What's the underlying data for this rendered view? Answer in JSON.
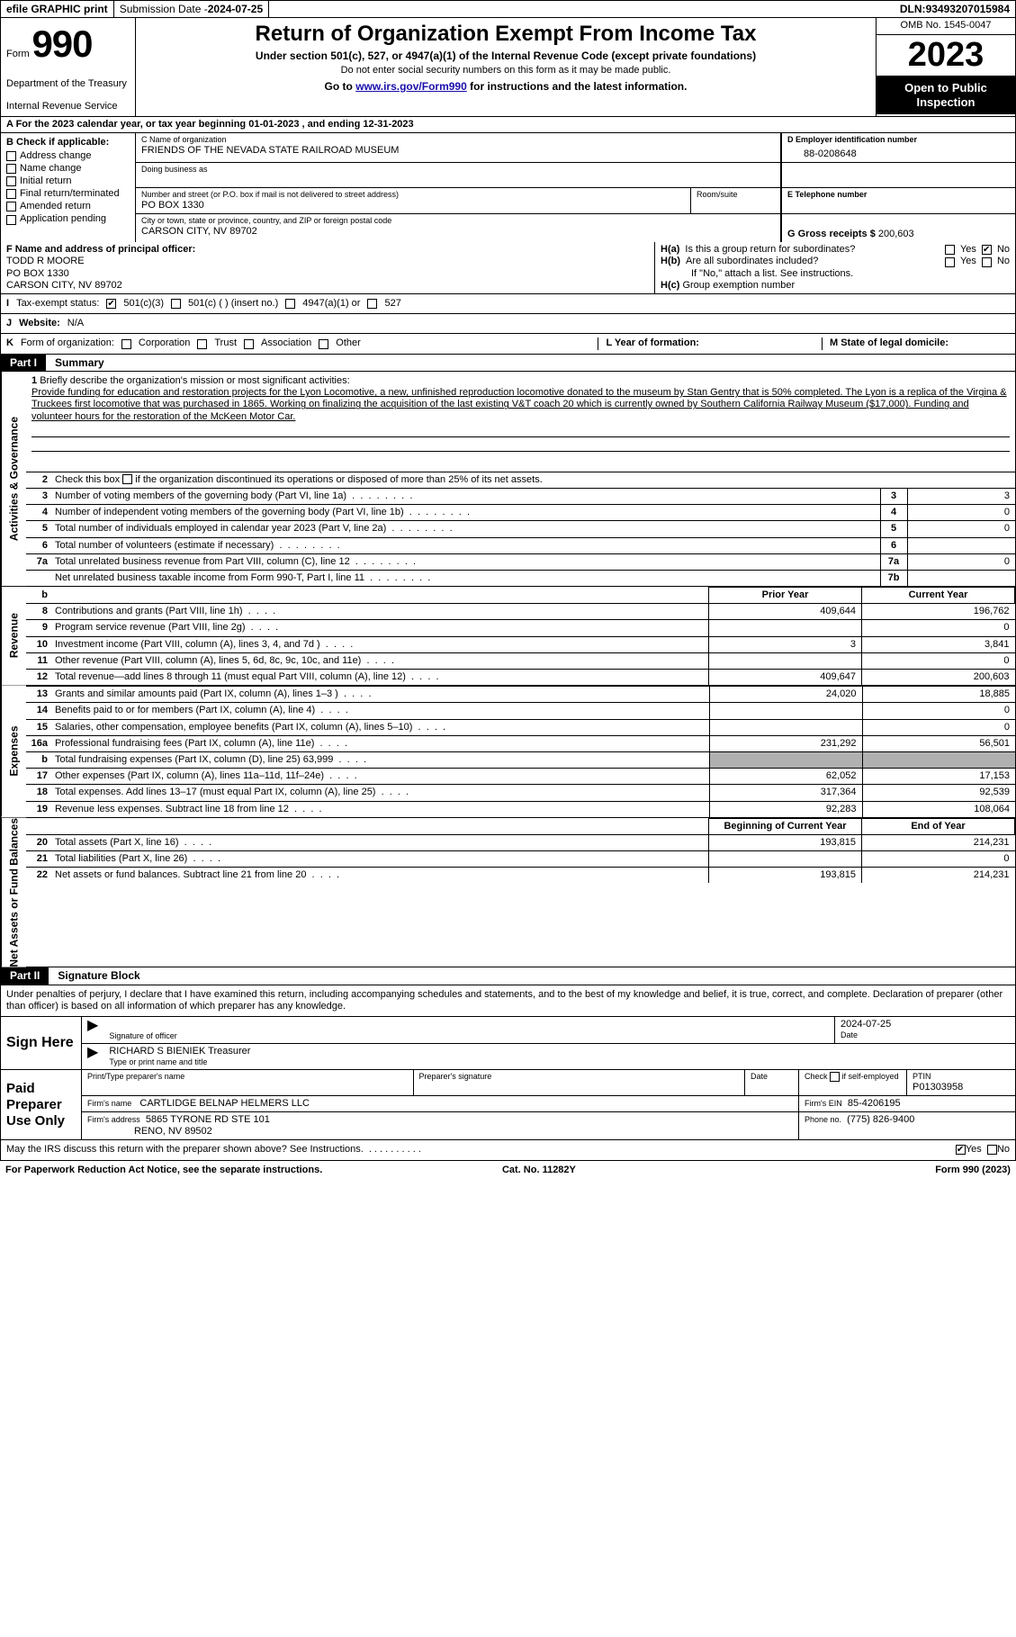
{
  "colors": {
    "black": "#000000",
    "white": "#ffffff",
    "shade_light": "#d9d9d9",
    "shade_dark": "#b0b0b0",
    "link": "#1a0dab"
  },
  "topbar": {
    "efile": "efile GRAPHIC print",
    "sub_date_label": "Submission Date - ",
    "sub_date": "2024-07-25",
    "dln_label": "DLN: ",
    "dln": "93493207015984"
  },
  "header": {
    "form_word": "Form",
    "form_num": "990",
    "dept1": "Department of the Treasury",
    "dept2": "Internal Revenue Service",
    "title": "Return of Organization Exempt From Income Tax",
    "sub": "Under section 501(c), 527, or 4947(a)(1) of the Internal Revenue Code (except private foundations)",
    "note": "Do not enter social security numbers on this form as it may be made public.",
    "goto_pre": "Go to ",
    "goto_link": "www.irs.gov/Form990",
    "goto_post": " for instructions and the latest information.",
    "omb": "OMB No. 1545-0047",
    "year": "2023",
    "inspect1": "Open to Public",
    "inspect2": "Inspection"
  },
  "rowA": {
    "text_pre": "A For the 2023 calendar year, or tax year beginning ",
    "begin": "01-01-2023",
    "mid": " , and ending ",
    "end": "12-31-2023"
  },
  "sectionB": {
    "header": "B Check if applicable:",
    "items": [
      "Address change",
      "Name change",
      "Initial return",
      "Final return/terminated",
      "Amended return",
      "Application pending"
    ]
  },
  "sectionC": {
    "name_lbl": "C Name of organization",
    "name": "FRIENDS OF THE NEVADA STATE RAILROAD MUSEUM",
    "dba_lbl": "Doing business as",
    "addr_lbl": "Number and street (or P.O. box if mail is not delivered to street address)",
    "addr": "PO BOX 1330",
    "room_lbl": "Room/suite",
    "city_lbl": "City or town, state or province, country, and ZIP or foreign postal code",
    "city": "CARSON CITY, NV  89702"
  },
  "sectionD": {
    "ein_lbl": "D Employer identification number",
    "ein": "88-0208648",
    "tel_lbl": "E Telephone number",
    "gross_lbl": "G Gross receipts $ ",
    "gross": "200,603"
  },
  "sectionF": {
    "lbl": "F Name and address of principal officer:",
    "name": "TODD R MOORE",
    "addr1": "PO BOX 1330",
    "addr2": "CARSON CITY, NV  89702"
  },
  "sectionH": {
    "ha_lbl": "H(a)",
    "ha_text": "Is this a group return for subordinates?",
    "hb_lbl": "H(b)",
    "hb_text": "Are all subordinates included?",
    "hb_note": "If \"No,\" attach a list. See instructions.",
    "hc_lbl": "H(c)",
    "hc_text": "Group exemption number",
    "yes": "Yes",
    "no": "No"
  },
  "rowI": {
    "lbl": "I",
    "text": "Tax-exempt status:",
    "opt1": "501(c)(3)",
    "opt2": "501(c) (  ) (insert no.)",
    "opt3": "4947(a)(1) or",
    "opt4": "527"
  },
  "rowJ": {
    "lbl": "J",
    "text": "Website:",
    "val": "N/A"
  },
  "rowK": {
    "lbl": "K",
    "text": "Form of organization:",
    "opts": [
      "Corporation",
      "Trust",
      "Association",
      "Other"
    ],
    "l_lbl": "L Year of formation:",
    "m_lbl": "M State of legal domicile:"
  },
  "part1": {
    "tab": "Part I",
    "title": "Summary"
  },
  "side_labels": {
    "ag": "Activities & Governance",
    "rev": "Revenue",
    "exp": "Expenses",
    "net": "Net Assets or Fund Balances"
  },
  "briefly": {
    "num": "1",
    "lbl": "Briefly describe the organization's mission or most significant activities:",
    "mission": "Provide funding for education and restoration projects for the Lyon Locomotive, a new, unfinished reproduction locomotive donated to the museum by Stan Gentry that is 50% completed. The Lyon is a replica of the Virgina & Truckees first locomotive that was purchased in 1865. Working on finalizing the acquisition of the last existing V&T coach 20 which is currently owned by Southern California Railway Museum ($17,000). Funding and volunteer hours for the restoration of the McKeen Motor Car."
  },
  "line2": {
    "num": "2",
    "text_a": "Check this box ",
    "text_b": " if the organization discontinued its operations or disposed of more than 25% of its net assets."
  },
  "gov_lines": [
    {
      "n": "3",
      "desc": "Number of voting members of the governing body (Part VI, line 1a)",
      "box": "3",
      "val": "3"
    },
    {
      "n": "4",
      "desc": "Number of independent voting members of the governing body (Part VI, line 1b)",
      "box": "4",
      "val": "0"
    },
    {
      "n": "5",
      "desc": "Total number of individuals employed in calendar year 2023 (Part V, line 2a)",
      "box": "5",
      "val": "0"
    },
    {
      "n": "6",
      "desc": "Total number of volunteers (estimate if necessary)",
      "box": "6",
      "val": ""
    },
    {
      "n": "7a",
      "desc": "Total unrelated business revenue from Part VIII, column (C), line 12",
      "box": "7a",
      "val": "0"
    },
    {
      "n": "",
      "desc": "Net unrelated business taxable income from Form 990-T, Part I, line 11",
      "box": "7b",
      "val": ""
    }
  ],
  "rev_header": {
    "b": "b",
    "prior": "Prior Year",
    "curr": "Current Year"
  },
  "rev_lines": [
    {
      "n": "8",
      "desc": "Contributions and grants (Part VIII, line 1h)",
      "prior": "409,644",
      "curr": "196,762"
    },
    {
      "n": "9",
      "desc": "Program service revenue (Part VIII, line 2g)",
      "prior": "",
      "curr": "0"
    },
    {
      "n": "10",
      "desc": "Investment income (Part VIII, column (A), lines 3, 4, and 7d )",
      "prior": "3",
      "curr": "3,841"
    },
    {
      "n": "11",
      "desc": "Other revenue (Part VIII, column (A), lines 5, 6d, 8c, 9c, 10c, and 11e)",
      "prior": "",
      "curr": "0"
    },
    {
      "n": "12",
      "desc": "Total revenue—add lines 8 through 11 (must equal Part VIII, column (A), line 12)",
      "prior": "409,647",
      "curr": "200,603"
    }
  ],
  "exp_lines": [
    {
      "n": "13",
      "desc": "Grants and similar amounts paid (Part IX, column (A), lines 1–3 )",
      "prior": "24,020",
      "curr": "18,885"
    },
    {
      "n": "14",
      "desc": "Benefits paid to or for members (Part IX, column (A), line 4)",
      "prior": "",
      "curr": "0"
    },
    {
      "n": "15",
      "desc": "Salaries, other compensation, employee benefits (Part IX, column (A), lines 5–10)",
      "prior": "",
      "curr": "0"
    },
    {
      "n": "16a",
      "desc": "Professional fundraising fees (Part IX, column (A), line 11e)",
      "prior": "231,292",
      "curr": "56,501"
    },
    {
      "n": "b",
      "desc": "Total fundraising expenses (Part IX, column (D), line 25) 63,999",
      "prior": "SHADE",
      "curr": "SHADE"
    },
    {
      "n": "17",
      "desc": "Other expenses (Part IX, column (A), lines 11a–11d, 11f–24e)",
      "prior": "62,052",
      "curr": "17,153"
    },
    {
      "n": "18",
      "desc": "Total expenses. Add lines 13–17 (must equal Part IX, column (A), line 25)",
      "prior": "317,364",
      "curr": "92,539"
    },
    {
      "n": "19",
      "desc": "Revenue less expenses. Subtract line 18 from line 12",
      "prior": "92,283",
      "curr": "108,064"
    }
  ],
  "net_header": {
    "prior": "Beginning of Current Year",
    "curr": "End of Year"
  },
  "net_lines": [
    {
      "n": "20",
      "desc": "Total assets (Part X, line 16)",
      "prior": "193,815",
      "curr": "214,231"
    },
    {
      "n": "21",
      "desc": "Total liabilities (Part X, line 26)",
      "prior": "",
      "curr": "0"
    },
    {
      "n": "22",
      "desc": "Net assets or fund balances. Subtract line 21 from line 20",
      "prior": "193,815",
      "curr": "214,231"
    }
  ],
  "part2": {
    "tab": "Part II",
    "title": "Signature Block",
    "declare": "Under penalties of perjury, I declare that I have examined this return, including accompanying schedules and statements, and to the best of my knowledge and belief, it is true, correct, and complete. Declaration of preparer (other than officer) is based on all information of which preparer has any knowledge."
  },
  "sign": {
    "here": "Sign Here",
    "sig_lbl": "Signature of officer",
    "date_lbl": "Date",
    "date_val": "2024-07-25",
    "officer": "RICHARD S BIENIEK  Treasurer",
    "type_lbl": "Type or print name and title"
  },
  "paid": {
    "here": "Paid Preparer Use Only",
    "p1": "Print/Type preparer's name",
    "p2": "Preparer's signature",
    "p3": "Date",
    "p4a": "Check",
    "p4b": "if self-employed",
    "p5_lbl": "PTIN",
    "p5": "P01303958",
    "firm_name_lbl": "Firm's name",
    "firm_name": "CARTLIDGE BELNAP HELMERS LLC",
    "firm_ein_lbl": "Firm's EIN",
    "firm_ein": "85-4206195",
    "firm_addr_lbl": "Firm's address",
    "firm_addr1": "5865 TYRONE RD STE 101",
    "firm_addr2": "RENO, NV  89502",
    "phone_lbl": "Phone no.",
    "phone": "(775) 826-9400"
  },
  "discuss": {
    "text": "May the IRS discuss this return with the preparer shown above? See Instructions.",
    "yes": "Yes",
    "no": "No"
  },
  "footer": {
    "pra": "For Paperwork Reduction Act Notice, see the separate instructions.",
    "cat": "Cat. No. 11282Y",
    "form": "Form 990 (2023)"
  }
}
